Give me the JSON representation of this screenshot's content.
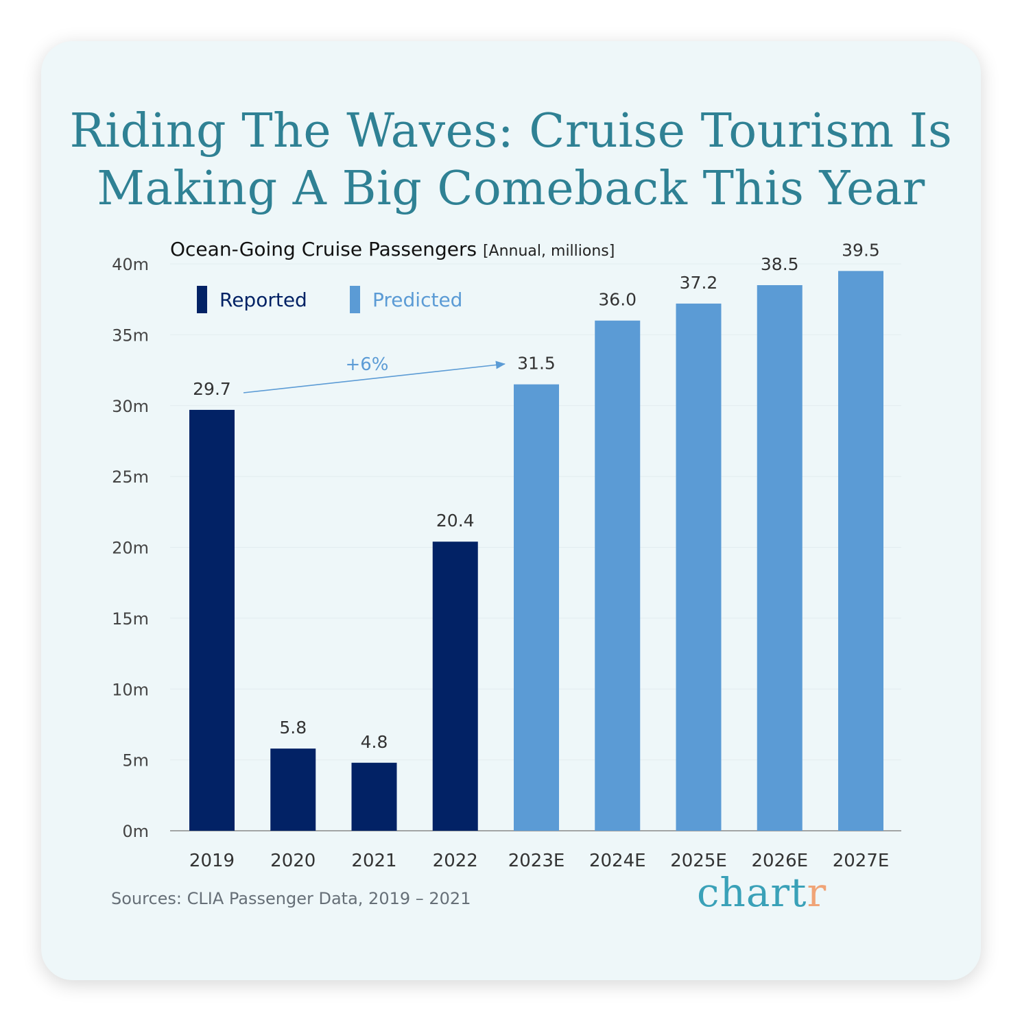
{
  "title_lines": [
    "Riding The Waves: Cruise Tourism Is",
    "Making A Big Comeback This Year"
  ],
  "subtitle": "Ocean-Going Cruise Passengers",
  "subtitle_unit": "[Annual, millions]",
  "legend": [
    {
      "label": "Reported",
      "color": "#022265"
    },
    {
      "label": "Predicted",
      "color": "#5b9bd5"
    }
  ],
  "annotation": {
    "label": "+6%",
    "color": "#5b9bd5"
  },
  "source": "Sources: CLIA Passenger Data, 2019 – 2021",
  "logo": {
    "main": "chart",
    "accent": "r"
  },
  "chart_data": {
    "type": "bar",
    "categories": [
      "2019",
      "2020",
      "2021",
      "2022",
      "2023E",
      "2024E",
      "2025E",
      "2026E",
      "2027E"
    ],
    "values": [
      29.7,
      5.8,
      4.8,
      20.4,
      31.5,
      36.0,
      37.2,
      38.5,
      39.5
    ],
    "value_labels": [
      "29.7",
      "5.8",
      "4.8",
      "20.4",
      "31.5",
      "36.0",
      "37.2",
      "38.5",
      "39.5"
    ],
    "series_by_category": [
      "Reported",
      "Reported",
      "Reported",
      "Reported",
      "Predicted",
      "Predicted",
      "Predicted",
      "Predicted",
      "Predicted"
    ],
    "ylim": [
      0,
      40
    ],
    "yticks": [
      0,
      5,
      10,
      15,
      20,
      25,
      30,
      35,
      40
    ],
    "ytick_labels": [
      "0m",
      "5m",
      "10m",
      "15m",
      "20m",
      "25m",
      "30m",
      "35m",
      "40m"
    ],
    "grid": true,
    "legend_position": "top-left"
  }
}
